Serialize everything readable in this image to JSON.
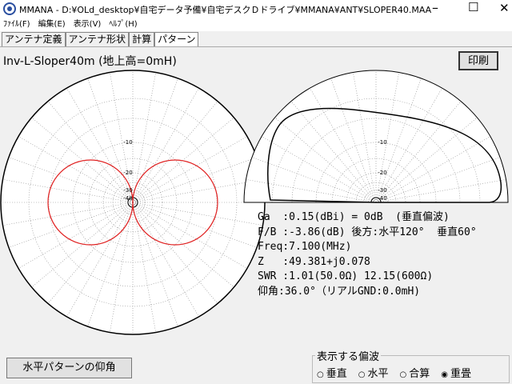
{
  "title_bar": {
    "title": "MMANA - D:¥OLd_desktop¥自宅データ予備¥自宅デスクＤドライブ¥MMANA¥ANT¥SLOPER40.MAA"
  },
  "menu": [
    "ﾌｧｲﾙ(F)",
    "編集(E)",
    "表示(V)",
    "ﾍﾙﾌﾟ(H)"
  ],
  "tabs": [
    "アンテナ定義",
    "アンテナ形状",
    "計算",
    "パターン"
  ],
  "heading": "Inv-L-Sloper40m (地上高=0mH)",
  "print_button": "印刷",
  "left_plot": {
    "ring_labels": [
      "-10",
      "-20",
      "-30",
      "-40"
    ]
  },
  "right_plot": {
    "ring_labels": [
      "-10",
      "-20",
      "-30",
      "-40"
    ]
  },
  "info_lines": [
    "Ga  :0.15(dBi) = 0dB  (垂直偏波)",
    "F/B :-3.86(dB) 後方:水平120°  垂直60°",
    "Freq:7.100(MHz)",
    "Z   :49.381+j0.078",
    "SWR :1.01(50.0Ω) 12.15(600Ω)",
    "仰角:36.0°（リアルGND:0.0mH)"
  ],
  "elevation_button": "水平パターンの仰角",
  "polarization": {
    "title": "表示する偏波",
    "options": [
      "垂直",
      "水平",
      "合算",
      "重畳"
    ]
  }
}
